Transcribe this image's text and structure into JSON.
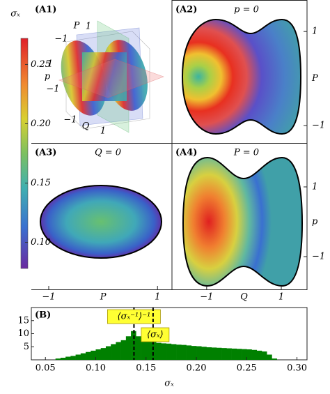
{
  "colorbar": {
    "label": "σₓ",
    "lim": [
      0.078,
      0.272
    ],
    "ticks": [
      {
        "value": 0.1,
        "label": "0.10"
      },
      {
        "value": 0.15,
        "label": "0.15"
      },
      {
        "value": 0.2,
        "label": "0.20"
      },
      {
        "value": 0.25,
        "label": "0.25"
      }
    ]
  },
  "chart_data": [
    {
      "type": "surface3d",
      "panel": "(A1)",
      "axes": [
        {
          "label": "P",
          "ticks": [
            {
              "value": -1,
              "label": "−1"
            },
            1
          ]
        },
        {
          "label": "p",
          "ticks": [
            1,
            {
              "value": -1,
              "label": "−1"
            }
          ]
        },
        {
          "label": "Q",
          "ticks": [
            {
              "value": -1,
              "label": "−1"
            },
            1
          ]
        }
      ]
    },
    {
      "type": "heatmap",
      "panel": "(A2)",
      "title": "p = 0",
      "ylabel": "P",
      "ylim": [
        -1.37,
        1.67
      ],
      "yticks": [
        1,
        {
          "value": -1,
          "label": "−1"
        }
      ]
    },
    {
      "type": "heatmap",
      "panel": "(A3)",
      "title": "Q = 0",
      "xlabel": "P",
      "xlim": [
        -1.32,
        1.24
      ],
      "xticks": [
        {
          "value": -1,
          "label": "−1"
        },
        1
      ]
    },
    {
      "type": "heatmap",
      "panel": "(A4)",
      "title": "P = 0",
      "xlabel": "Q",
      "ylabel": "p",
      "xlim": [
        -1.93,
        1.69
      ],
      "xticks": [
        {
          "value": -1,
          "label": "−1"
        },
        1
      ],
      "ylim": [
        -1.94,
        2.26
      ],
      "yticks": [
        1,
        {
          "value": -1,
          "label": "−1"
        }
      ]
    },
    {
      "type": "histogram",
      "panel": "(B)",
      "xlabel": "σₓ",
      "color": "#008000",
      "bins": [
        0.06,
        0.065,
        0.07,
        0.075,
        0.08,
        0.085,
        0.09,
        0.095,
        0.1,
        0.105,
        0.11,
        0.115,
        0.12,
        0.125,
        0.13,
        0.135,
        0.14,
        0.145,
        0.15,
        0.155,
        0.16,
        0.165,
        0.17,
        0.175,
        0.18,
        0.185,
        0.19,
        0.195,
        0.2,
        0.205,
        0.21,
        0.215,
        0.22,
        0.225,
        0.23,
        0.235,
        0.24,
        0.245,
        0.25,
        0.255,
        0.26,
        0.265,
        0.27,
        0.275,
        0.28
      ],
      "counts": [
        0.5,
        0.8,
        1.2,
        1.5,
        2,
        2.5,
        3,
        3.5,
        4,
        4.5,
        5.2,
        6,
        6.8,
        7.5,
        9,
        11,
        9,
        7.5,
        7,
        6.8,
        6.5,
        6.3,
        6.2,
        6,
        5.8,
        5.7,
        5.5,
        5.3,
        5.2,
        5,
        4.8,
        4.7,
        4.6,
        4.5,
        4.4,
        4.3,
        4.2,
        4.1,
        4,
        3.8,
        3.5,
        3.2,
        2,
        0.5
      ],
      "xlim": [
        0.036,
        0.31
      ],
      "ylim": [
        0,
        20
      ],
      "xticks": [
        0.05,
        {
          "value": 0.1,
          "label": "0.10"
        },
        0.15,
        {
          "value": 0.2,
          "label": "0.20"
        },
        0.25,
        {
          "value": 0.3,
          "label": "0.30"
        }
      ],
      "yticks": [
        5,
        10,
        15
      ],
      "markers": [
        {
          "value": 0.138,
          "label": "⟨σₓ⁻¹⟩⁻¹"
        },
        {
          "value": 0.157,
          "label": "⟨σₓ⟩"
        }
      ]
    }
  ]
}
